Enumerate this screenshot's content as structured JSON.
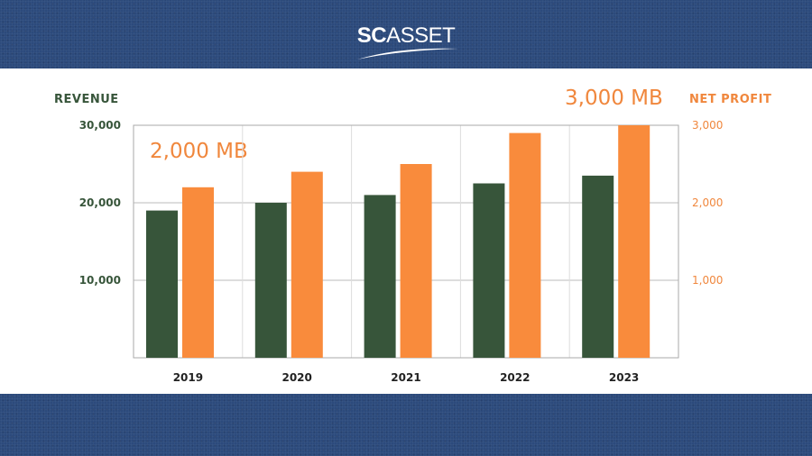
{
  "logo": {
    "bold": "SC",
    "light": "ASSET"
  },
  "chart_data": {
    "type": "bar",
    "categories": [
      "2019",
      "2020",
      "2021",
      "2022",
      "2023"
    ],
    "series": [
      {
        "name": "REVENUE",
        "axis": "left",
        "color": "#37553a",
        "values": [
          19000,
          20000,
          21000,
          22500,
          23500
        ]
      },
      {
        "name": "NET PROFIT",
        "axis": "right",
        "color": "#f98b3c",
        "values": [
          2200,
          2400,
          2500,
          2900,
          3000
        ]
      }
    ],
    "ylabel_left": "REVENUE",
    "ylabel_right": "NET PROFIT",
    "ylim_left": [
      0,
      30000
    ],
    "ylim_right": [
      0,
      3000
    ],
    "yticks_left": [
      "10,000",
      "20,000",
      "30,000"
    ],
    "yticks_right": [
      "1,000",
      "2,000",
      "3,000"
    ],
    "annotations": [
      "2,000 MB",
      "3,000 MB"
    ],
    "grid": true
  }
}
